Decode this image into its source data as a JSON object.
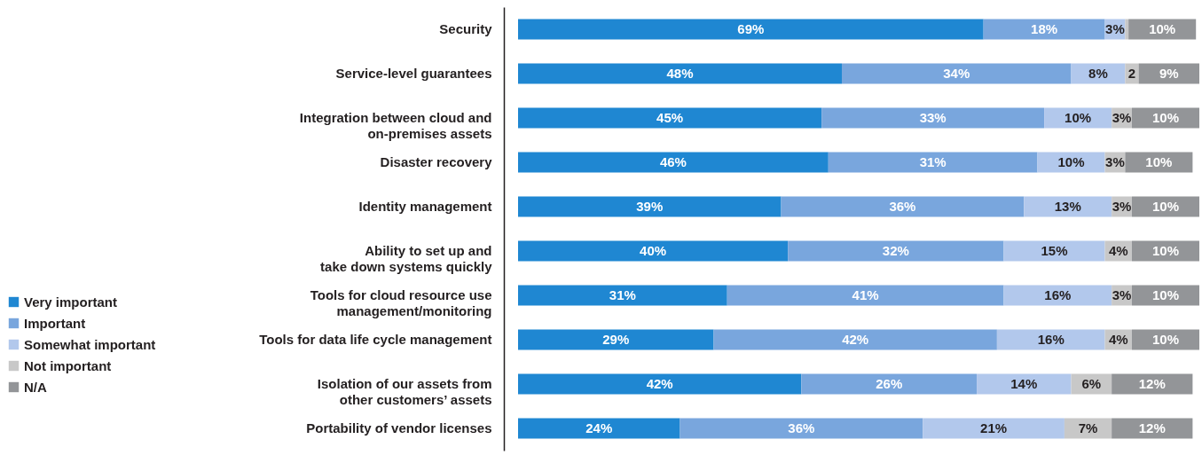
{
  "chart_data": {
    "type": "bar",
    "orientation": "horizontal",
    "stacked": true,
    "legend": "left",
    "categories": [
      "Security",
      "Service-level guarantees",
      "Integration between cloud and\non-premises assets",
      "Disaster recovery",
      "Identity management",
      "Ability to set up and\ntake down systems quickly",
      "Tools for cloud resource use\nmanagement/monitoring",
      "Tools for data life cycle management",
      "Isolation of our assets from\nother customers’ assets",
      "Portability of vendor licenses"
    ],
    "series": [
      {
        "name": "Very important",
        "color": "#1f87d2",
        "values": [
          69,
          48,
          45,
          46,
          39,
          40,
          31,
          29,
          42,
          24
        ],
        "value_labels": [
          "69%",
          "48%",
          "45%",
          "46%",
          "39%",
          "40%",
          "31%",
          "29%",
          "42%",
          "24%"
        ]
      },
      {
        "name": "Important",
        "color": "#79a6dd",
        "values": [
          18,
          34,
          33,
          31,
          36,
          32,
          41,
          42,
          26,
          36
        ],
        "value_labels": [
          "18%",
          "34%",
          "33%",
          "31%",
          "36%",
          "32%",
          "41%",
          "42%",
          "26%",
          "36%"
        ]
      },
      {
        "name": "Somewhat important",
        "color": "#b2c8ec",
        "values": [
          3,
          8,
          10,
          10,
          13,
          15,
          16,
          16,
          14,
          21
        ],
        "value_labels": [
          "3%",
          "8%",
          "10%",
          "10%",
          "13%",
          "15%",
          "16%",
          "16%",
          "14%",
          "21%"
        ]
      },
      {
        "name": "Not important",
        "color": "#c8c8c8",
        "values": [
          0.5,
          2,
          3,
          3,
          3,
          4,
          3,
          4,
          6,
          7
        ],
        "value_labels": [
          null,
          "2",
          "3%",
          "3%",
          "3%",
          "4%",
          "3%",
          "4%",
          "6%",
          "7%"
        ]
      },
      {
        "name": "N/A",
        "color": "#939598",
        "values": [
          10,
          9,
          10,
          10,
          10,
          10,
          10,
          10,
          12,
          12
        ],
        "value_labels": [
          "10%",
          "9%",
          "10%",
          "10%",
          "10%",
          "10%",
          "10%",
          "10%",
          "12%",
          "12%"
        ]
      }
    ]
  }
}
